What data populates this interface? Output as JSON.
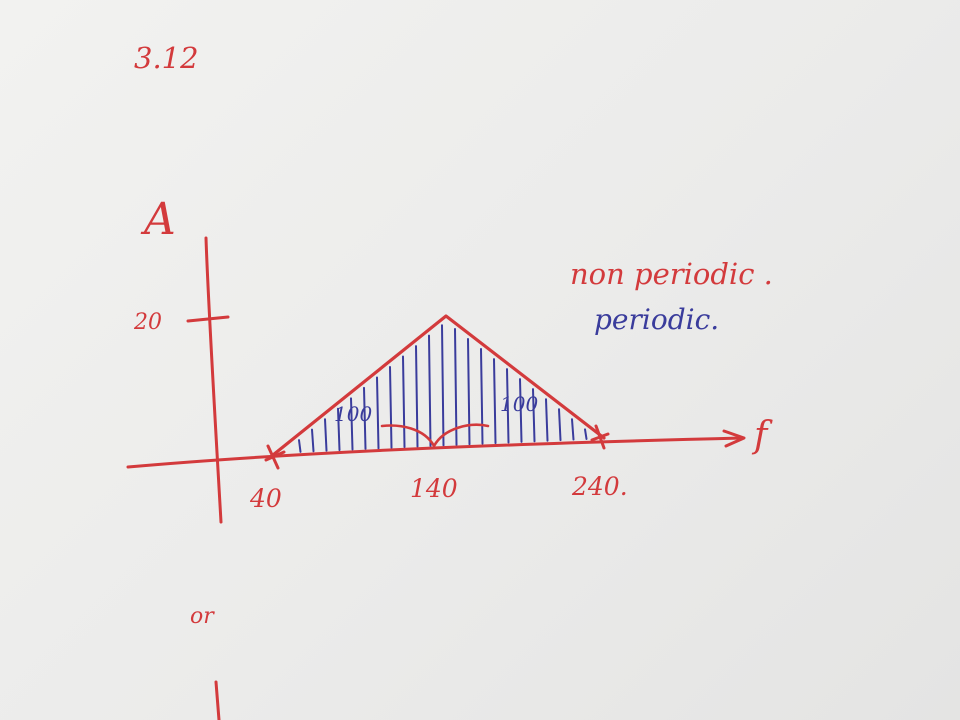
{
  "sheet": {
    "problem_number": "3.12",
    "axis_amplitude_label": "A",
    "axis_frequency_label": "f",
    "amplitude_tick": "20",
    "freq_tick_left": "40",
    "freq_tick_center": "140",
    "freq_tick_right": "240.",
    "width_left": "100",
    "width_right": "100",
    "note_red": "non periodic .",
    "note_blue": "periodic.",
    "bottom_note": "or"
  },
  "colors": {
    "ink_red": "#d33a3c",
    "ink_blue": "#3a3c9c",
    "paper": "#efefed"
  }
}
